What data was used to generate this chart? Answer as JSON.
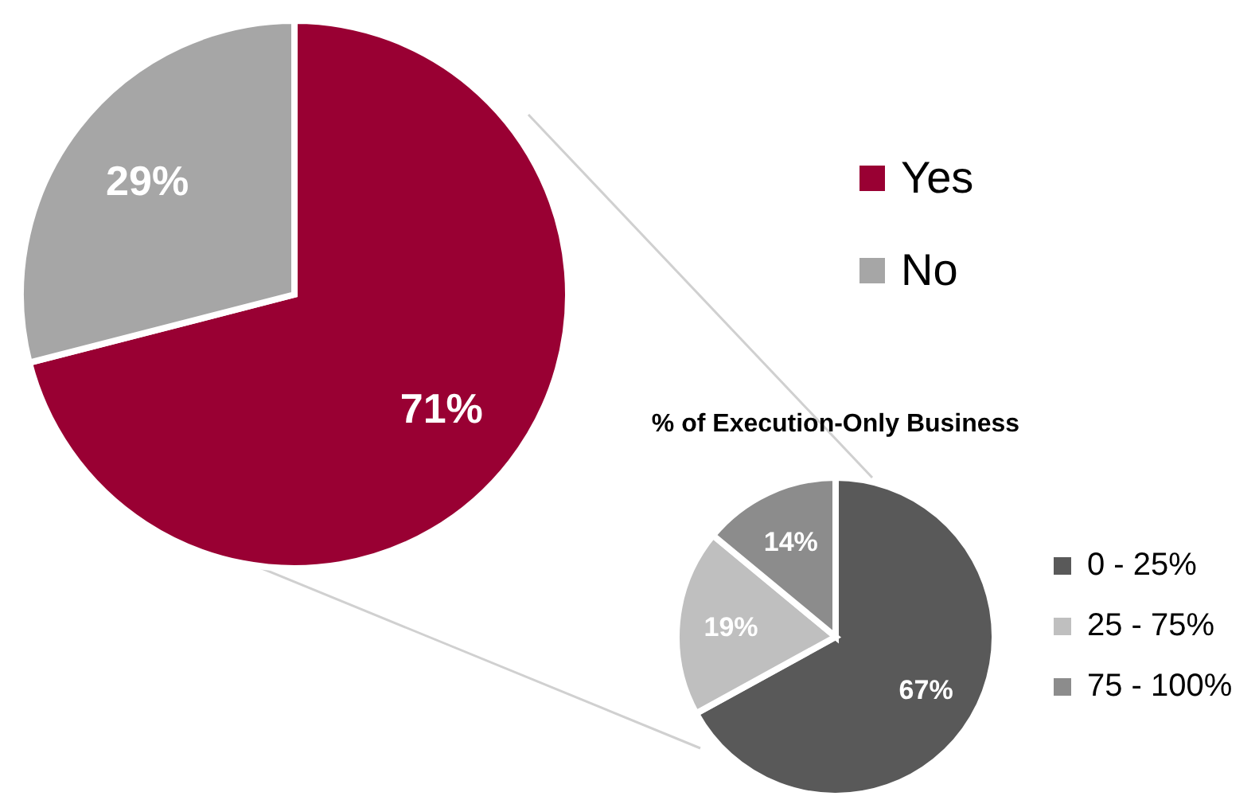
{
  "chart_data": [
    {
      "type": "pie",
      "categories": [
        "Yes",
        "No"
      ],
      "values": [
        71,
        29
      ],
      "colors": [
        "#990033",
        "#a6a6a6"
      ],
      "value_labels": [
        "71%",
        "29%"
      ],
      "legend": "right"
    },
    {
      "type": "pie",
      "title": "% of Execution-Only Business",
      "categories": [
        "0 - 25%",
        "25 - 75%",
        "75 - 100%"
      ],
      "values": [
        67,
        19,
        14
      ],
      "colors": [
        "#595959",
        "#bfbfbf",
        "#8c8c8c"
      ],
      "value_labels": [
        "67%",
        "19%",
        "14%"
      ],
      "legend": "right"
    }
  ]
}
